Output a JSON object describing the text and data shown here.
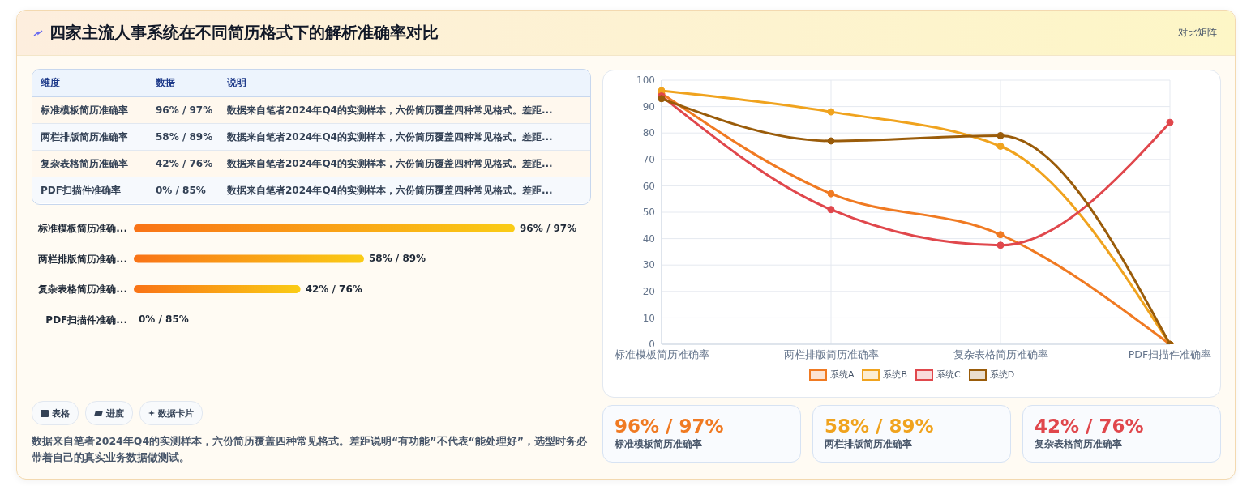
{
  "chart_data": [
    {
      "type": "other",
      "title": "四家主流人事系统在不同简历格式下的解析准确率对比",
      "annotations": [
        "对比矩阵"
      ]
    },
    {
      "type": "other",
      "categories": [
        "标准模板简历准确率",
        "两栏排版简历准确率",
        "复杂表格简历准确率",
        "PDF扫描件准确率"
      ],
      "value_labels": [
        "96% / 97%",
        "58% / 89%",
        "42% / 76%",
        "0% / 85%"
      ],
      "annotations": [
        "维度",
        "数据",
        "说明",
        "数据来自笔者2024年Q4的实测样本，六份简历覆盖四种常见格式。差距...",
        "数据来自笔者2024年Q4的实测样本，六份简历覆盖四种常见格式。差距...",
        "数据来自笔者2024年Q4的实测样本，六份简历覆盖四种常见格式。差距...",
        "数据来自笔者2024年Q4的实测样本，六份简历覆盖四种常见格式。差距..."
      ]
    },
    {
      "type": "bar",
      "orientation": "horizontal",
      "tick_labels": "y",
      "categories": [
        "标准模板简历准确...",
        "两栏排版简历准确...",
        "复杂表格简历准确...",
        "PDF扫描件准确..."
      ],
      "values": [
        96,
        58,
        42,
        0
      ],
      "value_labels": [
        "96% / 97%",
        "58% / 89%",
        "42% / 76%",
        "0% / 85%"
      ],
      "color": "#f97316"
    },
    {
      "type": "other",
      "annotations": [
        "表格",
        "进度",
        "数据卡片",
        "数据来自笔者2024年Q4的实测样本，六份简历覆盖四种常见格式。差距说明“有功能”不代表“能处理好”，选型时务必带着自己的真实业务数据做测试。"
      ]
    },
    {
      "type": "line",
      "categories": [
        "标准模板简历准确率",
        "两栏排版简历准确率",
        "复杂表格简历准确率",
        "PDF扫描件准确率"
      ],
      "ylim": [
        0,
        100
      ],
      "yticks": [
        0,
        10,
        20,
        30,
        40,
        50,
        60,
        70,
        80,
        90,
        100
      ],
      "grid": true,
      "legend": "bottom",
      "marker": "circle",
      "series": [
        {
          "name": "系统A",
          "color": "#f07a22",
          "values": [
            95,
            57,
            41.5,
            0
          ]
        },
        {
          "name": "系统B",
          "color": "#f0a31e",
          "values": [
            96,
            88,
            75,
            0
          ]
        },
        {
          "name": "系统C",
          "color": "#e0474c",
          "values": [
            94,
            51,
            37.5,
            84
          ]
        },
        {
          "name": "系统D",
          "color": "#9a5c0a",
          "values": [
            93,
            77,
            79,
            0
          ]
        }
      ]
    },
    {
      "type": "other",
      "categories": [
        "标准模板简历准确率",
        "两栏排版简历准确率",
        "复杂表格简历准确率"
      ],
      "value_labels": [
        "96% / 97%",
        "58% / 89%",
        "42% / 76%"
      ]
    }
  ]
}
